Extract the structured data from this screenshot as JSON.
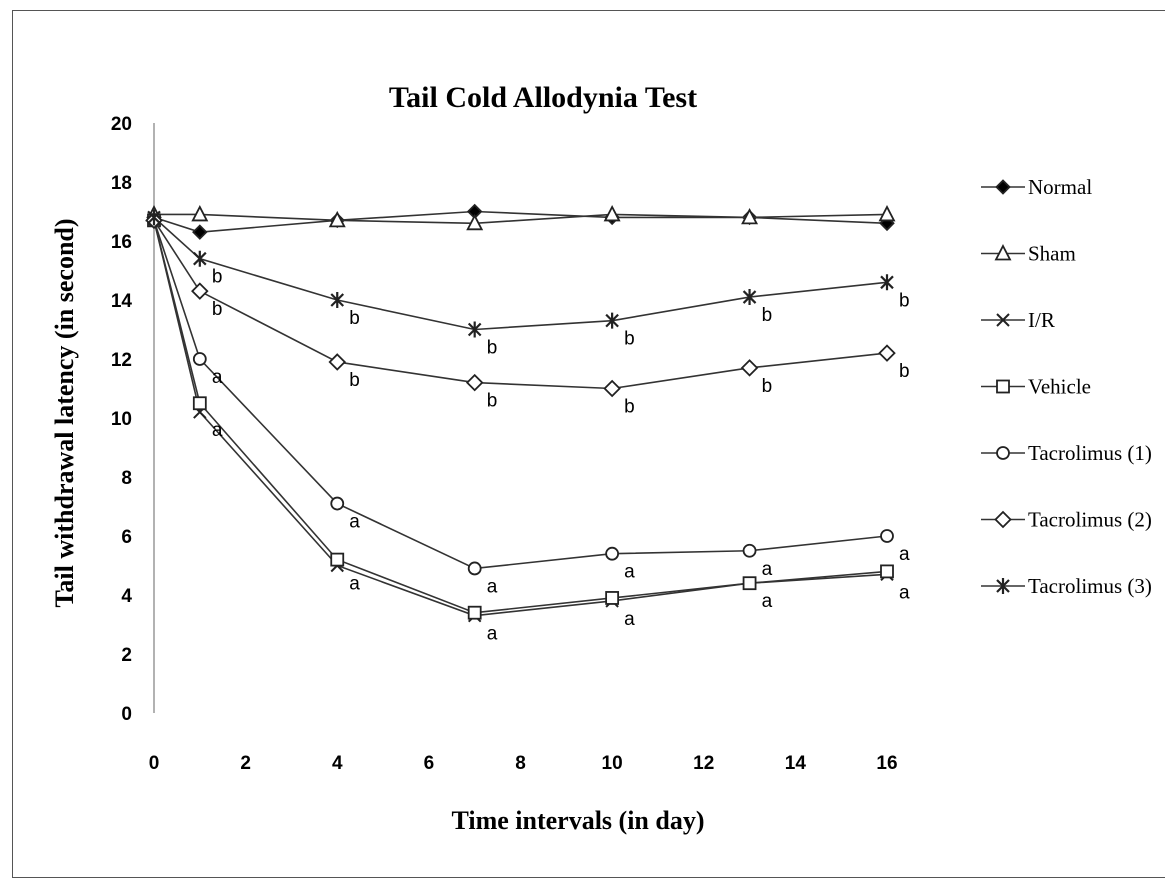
{
  "chart_data": {
    "type": "line",
    "title": "Tail Cold Allodynia Test",
    "xlabel": "Time intervals (in day)",
    "ylabel": "Tail withdrawal latency (in second)",
    "xlim": [
      0,
      16
    ],
    "ylim": [
      0,
      20
    ],
    "x_ticks": [
      "0",
      "2",
      "4",
      "6",
      "8",
      "10",
      "12",
      "14",
      "16"
    ],
    "y_ticks": [
      "0",
      "2",
      "4",
      "6",
      "8",
      "10",
      "12",
      "14",
      "16",
      "18",
      "20"
    ],
    "x": [
      0,
      1,
      4,
      7,
      10,
      13,
      16
    ],
    "grid": false,
    "legend_position": "right",
    "series": [
      {
        "name": "Normal",
        "marker": "diamond-filled",
        "values": [
          16.8,
          16.3,
          16.7,
          17.0,
          16.8,
          16.8,
          16.6
        ],
        "annotations": []
      },
      {
        "name": "Sham",
        "marker": "triangle-open",
        "values": [
          16.9,
          16.9,
          16.7,
          16.6,
          16.9,
          16.8,
          16.9
        ],
        "annotations": []
      },
      {
        "name": "I/R",
        "marker": "x",
        "values": [
          16.7,
          10.2,
          5.0,
          3.3,
          3.8,
          4.4,
          4.7
        ],
        "annotations": [
          "",
          "a",
          "a",
          "a",
          "a",
          "a",
          "a"
        ]
      },
      {
        "name": "Vehicle",
        "marker": "square-open",
        "values": [
          16.7,
          10.5,
          5.2,
          3.4,
          3.9,
          4.4,
          4.8
        ],
        "annotations": []
      },
      {
        "name": "Tacrolimus (1)",
        "marker": "circle-open",
        "values": [
          16.7,
          12.0,
          7.1,
          4.9,
          5.4,
          5.5,
          6.0
        ],
        "annotations": [
          "",
          "a",
          "a",
          "a",
          "a",
          "a",
          "a"
        ]
      },
      {
        "name": "Tacrolimus (2)",
        "marker": "diamond-open",
        "values": [
          16.7,
          14.3,
          11.9,
          11.2,
          11.0,
          11.7,
          12.2
        ],
        "annotations": [
          "",
          "b",
          "b",
          "b",
          "b",
          "b",
          "b"
        ]
      },
      {
        "name": "Tacrolimus (3)",
        "marker": "star",
        "values": [
          16.8,
          15.4,
          14.0,
          13.0,
          13.3,
          14.1,
          14.6
        ],
        "annotations": [
          "",
          "b",
          "b",
          "b",
          "b",
          "b",
          "b"
        ]
      }
    ]
  }
}
